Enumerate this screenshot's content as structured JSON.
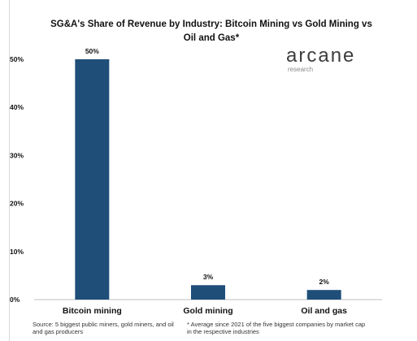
{
  "title": "SG&A's Share of Revenue by Industry: Bitcoin Mining vs Gold Mining vs Oil and Gas*",
  "logo": {
    "name": "arcane",
    "tagline": "research"
  },
  "footnotes": {
    "source": "Source: 5 biggest public miners, gold miners, and oil and gas producers",
    "note": "* Average since 2021 of the five biggest companies by market cap in the respective industries"
  },
  "colors": {
    "bar": "#1f4e79",
    "axis": "#bfbfbf",
    "text": "#111111"
  },
  "chart_data": {
    "type": "bar",
    "title": "SG&A's Share of Revenue by Industry: Bitcoin Mining vs Gold Mining vs Oil and Gas*",
    "categories": [
      "Bitcoin mining",
      "Gold mining",
      "Oil and gas"
    ],
    "values": [
      50,
      3,
      2
    ],
    "value_labels": [
      "50%",
      "3%",
      "2%"
    ],
    "unit": "%",
    "ylim": [
      0,
      50
    ],
    "yticks": [
      0,
      10,
      20,
      30,
      40,
      50
    ],
    "ytick_labels": [
      "0%",
      "10%",
      "20%",
      "30%",
      "40%",
      "50%"
    ],
    "xlabel": "",
    "ylabel": "",
    "grid": false,
    "legend": "none"
  }
}
